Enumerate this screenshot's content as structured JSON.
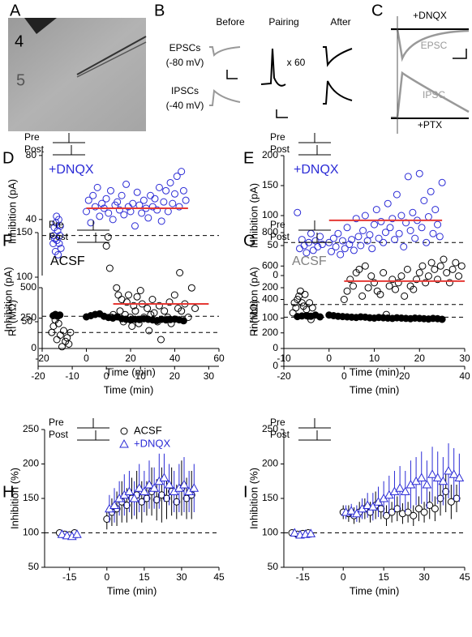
{
  "figure": {
    "panel_letters": [
      "A",
      "B",
      "C"
    ],
    "panel_a": {
      "layer_4": "4",
      "layer_5": "5"
    },
    "panel_b": {
      "before": "Before",
      "pairing": "Pairing",
      "after": "After",
      "epsc": "EPSCs",
      "epsc_hold": "(-80 mV)",
      "ipsc": "IPSCs",
      "ipsc_hold": "(-40 mV)",
      "repeats": "x 60"
    },
    "panel_c": {
      "dnqx": "+DNQX",
      "epsc": "EPSC",
      "ipsc": "IPSC",
      "ptx": "+PTX"
    }
  },
  "chart_data": [
    {
      "type": "scatter",
      "panel": "D",
      "ylabel": "Inhibition (pA)",
      "annotation": "+DNQX",
      "annotation_color": "#2b2bd6",
      "protocol": {
        "pre": "Pre",
        "post": "Post"
      },
      "color": "#2b2bd6",
      "filled": false,
      "xlim": [
        -20,
        60
      ],
      "ylim": [
        5,
        85
      ],
      "yticks": [
        40,
        80
      ],
      "baseline": 30,
      "mean_line": {
        "x": [
          0,
          46
        ],
        "y": 47,
        "color": "#e53935"
      },
      "x": [
        -15,
        -14.8,
        -14.5,
        -14.3,
        -14,
        -13.8,
        -13.5,
        -13.3,
        -13,
        -12.8,
        -12.5,
        -12.3,
        -12,
        -11.8,
        -11.5,
        0,
        1,
        2,
        3,
        4,
        5,
        6,
        7,
        8,
        9,
        10,
        11,
        12,
        13,
        14,
        15,
        16,
        17,
        18,
        19,
        20,
        21,
        22,
        23,
        24,
        25,
        26,
        27,
        28,
        29,
        30,
        31,
        32,
        33,
        34,
        35,
        36,
        37,
        38,
        39,
        40,
        41,
        42,
        43,
        44,
        45
      ],
      "values": [
        25,
        30,
        35,
        28,
        20,
        38,
        42,
        27,
        33,
        18,
        40,
        25,
        30,
        36,
        22,
        45,
        52,
        38,
        55,
        48,
        60,
        42,
        50,
        47,
        53,
        44,
        58,
        40,
        49,
        51,
        46,
        55,
        43,
        62,
        48,
        45,
        50,
        36,
        57,
        49,
        44,
        52,
        47,
        41,
        55,
        48,
        53,
        46,
        60,
        39,
        51,
        58,
        45,
        63,
        50,
        56,
        67,
        48,
        70,
        58,
        52
      ]
    },
    {
      "type": "scatter",
      "ylabel": "Ri (MΩ)",
      "xlabel": "Time (min)",
      "color": "#000000",
      "filled": true,
      "xlim": [
        -20,
        60
      ],
      "ylim": [
        0,
        500
      ],
      "yticks": [
        0,
        250,
        500
      ],
      "xticks": [
        -20,
        0,
        20,
        40,
        60
      ],
      "baseline": 265,
      "x": [
        -15,
        -14,
        -13,
        -12,
        0,
        2,
        4,
        6,
        8,
        10,
        12,
        14,
        16,
        18,
        20,
        22,
        24,
        26,
        28,
        30,
        32,
        34,
        36,
        38,
        40,
        42,
        44
      ],
      "values": [
        270,
        280,
        265,
        275,
        260,
        270,
        280,
        285,
        265,
        255,
        250,
        260,
        245,
        240,
        235,
        240,
        238,
        245,
        240,
        235,
        230,
        240,
        235,
        238,
        242,
        236,
        228
      ]
    },
    {
      "type": "scatter",
      "panel": "E",
      "ylabel": "Inhibition (pA)",
      "annotation": "+DNQX",
      "annotation_color": "#2b2bd6",
      "protocol": {
        "pre": "Pre",
        "post": "Post"
      },
      "color": "#2b2bd6",
      "filled": false,
      "xlim": [
        -10,
        30
      ],
      "ylim": [
        0,
        200
      ],
      "yticks": [
        0,
        50,
        100,
        150,
        200
      ],
      "baseline": 55,
      "mean_line": {
        "x": [
          0,
          25
        ],
        "y": 92,
        "color": "#e53935"
      },
      "x": [
        -7,
        -6.5,
        -6,
        -5.5,
        -5,
        -4.5,
        -4,
        -3.5,
        -3,
        -2.5,
        -2,
        -1.5,
        0,
        0.5,
        1,
        1.5,
        2,
        2.5,
        3,
        3.5,
        4,
        4.5,
        5,
        5.5,
        6,
        6.5,
        7,
        7.5,
        8,
        8.5,
        9,
        9.5,
        10,
        10.5,
        11,
        11.5,
        12,
        12.5,
        13,
        13.5,
        14,
        14.5,
        15,
        15.5,
        16,
        16.5,
        17,
        17.5,
        18,
        18.5,
        19,
        19.5,
        20,
        20.5,
        21,
        21.5,
        22,
        22.5,
        23,
        23.5,
        24,
        24.5,
        25
      ],
      "values": [
        105,
        45,
        60,
        50,
        38,
        55,
        70,
        42,
        58,
        48,
        65,
        52,
        55,
        40,
        62,
        48,
        70,
        35,
        58,
        45,
        80,
        52,
        60,
        42,
        95,
        65,
        50,
        75,
        100,
        58,
        68,
        45,
        85,
        110,
        62,
        90,
        55,
        72,
        120,
        80,
        95,
        60,
        135,
        70,
        100,
        48,
        88,
        165,
        75,
        105,
        62,
        92,
        170,
        80,
        125,
        55,
        98,
        140,
        70,
        110,
        85,
        65,
        155
      ]
    },
    {
      "type": "scatter",
      "ylabel": "Ri (MΩ)",
      "xlabel": "Time (min)",
      "color": "#000000",
      "filled": true,
      "xlim": [
        -10,
        30
      ],
      "ylim": [
        0,
        200
      ],
      "yticks": [
        0,
        100,
        200
      ],
      "xticks": [
        -10,
        0,
        10,
        20,
        30
      ],
      "baseline": 103,
      "x": [
        -7,
        -6,
        -5,
        -4,
        -3,
        -2,
        0,
        1,
        2,
        3,
        4,
        5,
        6,
        7,
        8,
        9,
        10,
        11,
        12,
        13,
        14,
        15,
        16,
        17,
        18,
        19,
        20,
        21,
        22,
        23,
        24,
        25
      ],
      "values": [
        105,
        107,
        108,
        106,
        110,
        104,
        110,
        108,
        106,
        105,
        104,
        103,
        102,
        104,
        103,
        101,
        100,
        102,
        101,
        100,
        99,
        101,
        100,
        99,
        98,
        100,
        99,
        98,
        97,
        99,
        98,
        96
      ]
    },
    {
      "type": "scatter",
      "panel": "F",
      "ylabel": "Inhibition (pA)",
      "xlabel": "Time (min)",
      "annotation": "ACSF",
      "annotation_color": "#000000",
      "protocol": {
        "pre": "Pre",
        "post": "Post"
      },
      "color": "#000000",
      "filled": false,
      "xlim": [
        -20,
        33
      ],
      "ylim": [
        0,
        150
      ],
      "yticks": [
        50,
        100,
        150
      ],
      "xticks": [
        -20,
        -10,
        0,
        10,
        20,
        30
      ],
      "baseline": 38,
      "mean_line": {
        "x": [
          2,
          30
        ],
        "y": 70,
        "color": "#e53935"
      },
      "x": [
        -16,
        -15.5,
        -15,
        -14.5,
        -14,
        -13.5,
        -13,
        -12.5,
        -12,
        -11.5,
        -11,
        -10.5,
        0,
        0.5,
        1,
        1.5,
        2,
        3,
        3.5,
        4,
        4.5,
        5,
        5.5,
        6,
        6.5,
        7,
        7.5,
        8,
        8.5,
        9,
        9.5,
        10,
        10.5,
        11,
        12,
        12.5,
        13,
        13.5,
        14,
        15,
        15.5,
        16,
        17,
        18,
        18.5,
        19,
        20,
        21,
        21.5,
        22,
        23,
        24,
        25,
        26
      ],
      "values": [
        38,
        45,
        52,
        30,
        48,
        35,
        22,
        40,
        28,
        32,
        25,
        38,
        135,
        145,
        110,
        55,
        58,
        88,
        80,
        62,
        75,
        50,
        58,
        72,
        80,
        55,
        45,
        68,
        62,
        78,
        48,
        85,
        70,
        55,
        65,
        40,
        58,
        75,
        60,
        50,
        68,
        30,
        62,
        55,
        72,
        48,
        80,
        65,
        105,
        62,
        70,
        55,
        88,
        65
      ]
    },
    {
      "type": "scatter",
      "panel": "G",
      "ylabel": "Inhibition (pA)",
      "xlabel": "Time (min)",
      "annotation": "ACSF",
      "annotation_color": "#808080",
      "protocol": {
        "pre": "Pre",
        "post": "Post"
      },
      "color": "#000000",
      "filled": false,
      "xlim": [
        -20,
        40
      ],
      "ylim": [
        0,
        800
      ],
      "yticks": [
        0,
        200,
        400,
        600,
        800
      ],
      "xticks": [
        -20,
        0,
        20,
        40
      ],
      "baseline": 370,
      "mean_line": {
        "x": [
          0,
          40
        ],
        "y": 510,
        "color": "#e53935"
      },
      "x": [
        -17,
        -16.5,
        -16,
        -15.5,
        -15,
        -14.5,
        -14,
        -13.5,
        -13,
        -12.5,
        -12,
        -11.5,
        -11,
        -10.5,
        0,
        1,
        2,
        3,
        4,
        5,
        6,
        7,
        8,
        9,
        10,
        11,
        12,
        13,
        14,
        15,
        16,
        17,
        18,
        19,
        20,
        21,
        22,
        23,
        24,
        25,
        26,
        27,
        28,
        29,
        30,
        31,
        32,
        33,
        34,
        35,
        36,
        37,
        38,
        39
      ],
      "values": [
        320,
        380,
        350,
        400,
        420,
        450,
        380,
        360,
        430,
        340,
        300,
        380,
        280,
        350,
        400,
        450,
        520,
        480,
        560,
        580,
        420,
        600,
        470,
        540,
        500,
        450,
        430,
        560,
        310,
        480,
        520,
        460,
        500,
        540,
        420,
        580,
        480,
        460,
        520,
        560,
        600,
        500,
        540,
        620,
        580,
        520,
        600,
        640,
        560,
        500,
        580,
        620,
        540,
        600
      ]
    },
    {
      "type": "errorbar",
      "panel": "H",
      "ylabel": "Inhibition (%)",
      "xlabel": "Time (min)",
      "protocol": {
        "pre": "Pre",
        "post": "Post"
      },
      "xlim": [
        -25,
        45
      ],
      "ylim": [
        50,
        250
      ],
      "yticks": [
        50,
        100,
        150,
        200,
        250
      ],
      "xticks": [
        -15,
        0,
        15,
        30,
        45
      ],
      "baseline": 100,
      "series": [
        {
          "name": "ACSF",
          "color": "#000000",
          "marker": "circle",
          "x": [
            -19,
            -17,
            -15,
            -13,
            0,
            2,
            4,
            6,
            8,
            10,
            12,
            14,
            16,
            18,
            20,
            22,
            24,
            26,
            28,
            30,
            32,
            34
          ],
          "values": [
            100,
            98,
            97,
            100,
            120,
            130,
            135,
            145,
            140,
            150,
            155,
            145,
            150,
            160,
            148,
            155,
            150,
            160,
            145,
            165,
            150,
            155
          ],
          "errors": [
            5,
            4,
            5,
            5,
            15,
            20,
            25,
            30,
            25,
            30,
            35,
            30,
            25,
            35,
            30,
            40,
            30,
            35,
            25,
            40,
            30,
            35
          ]
        },
        {
          "name": "+DNQX",
          "color": "#2b2bd6",
          "marker": "triangle",
          "x": [
            -18,
            -16,
            -14,
            -12,
            1,
            3,
            5,
            7,
            9,
            11,
            13,
            15,
            17,
            19,
            21,
            23,
            25,
            27,
            29,
            31,
            33,
            35
          ],
          "values": [
            98,
            96,
            95,
            98,
            135,
            140,
            150,
            155,
            160,
            150,
            165,
            160,
            170,
            165,
            175,
            180,
            170,
            160,
            165,
            170,
            160,
            165
          ],
          "errors": [
            6,
            5,
            5,
            6,
            20,
            25,
            25,
            30,
            30,
            25,
            35,
            30,
            35,
            30,
            40,
            35,
            30,
            30,
            35,
            40,
            30,
            35
          ]
        }
      ]
    },
    {
      "type": "errorbar",
      "panel": "I",
      "ylabel": "Inhibition (%)",
      "xlabel": "Time (min)",
      "protocol": {
        "pre": "Pre",
        "post": "Post"
      },
      "xlim": [
        -22,
        45
      ],
      "ylim": [
        50,
        250
      ],
      "yticks": [
        50,
        100,
        150,
        200,
        250
      ],
      "xticks": [
        -15,
        0,
        15,
        30,
        45
      ],
      "baseline": 100,
      "series": [
        {
          "color": "#000000",
          "marker": "circle",
          "x": [
            -19,
            -17,
            -15,
            -13,
            0,
            2,
            4,
            6,
            8,
            10,
            12,
            14,
            16,
            18,
            20,
            22,
            24,
            26,
            28,
            30,
            32,
            34,
            36,
            38,
            40,
            42
          ],
          "values": [
            100,
            98,
            99,
            100,
            130,
            128,
            125,
            130,
            135,
            130,
            140,
            135,
            125,
            130,
            135,
            128,
            130,
            125,
            135,
            130,
            140,
            135,
            150,
            160,
            145,
            150
          ],
          "errors": [
            5,
            4,
            4,
            5,
            10,
            12,
            12,
            15,
            15,
            15,
            20,
            15,
            15,
            15,
            18,
            15,
            15,
            15,
            18,
            15,
            20,
            18,
            25,
            30,
            25,
            20
          ]
        },
        {
          "color": "#2b2bd6",
          "marker": "triangle",
          "x": [
            -18,
            -16,
            -14,
            -12,
            1,
            3,
            5,
            7,
            9,
            11,
            13,
            15,
            17,
            19,
            21,
            23,
            25,
            27,
            29,
            31,
            33,
            35,
            37,
            39,
            41,
            43
          ],
          "values": [
            100,
            97,
            98,
            99,
            130,
            132,
            128,
            135,
            140,
            138,
            145,
            150,
            155,
            160,
            165,
            160,
            170,
            175,
            180,
            170,
            185,
            180,
            175,
            190,
            185,
            180
          ],
          "errors": [
            6,
            5,
            5,
            6,
            10,
            10,
            12,
            15,
            18,
            20,
            22,
            25,
            28,
            30,
            32,
            30,
            35,
            35,
            38,
            35,
            40,
            38,
            35,
            40,
            38,
            35
          ]
        }
      ]
    }
  ]
}
